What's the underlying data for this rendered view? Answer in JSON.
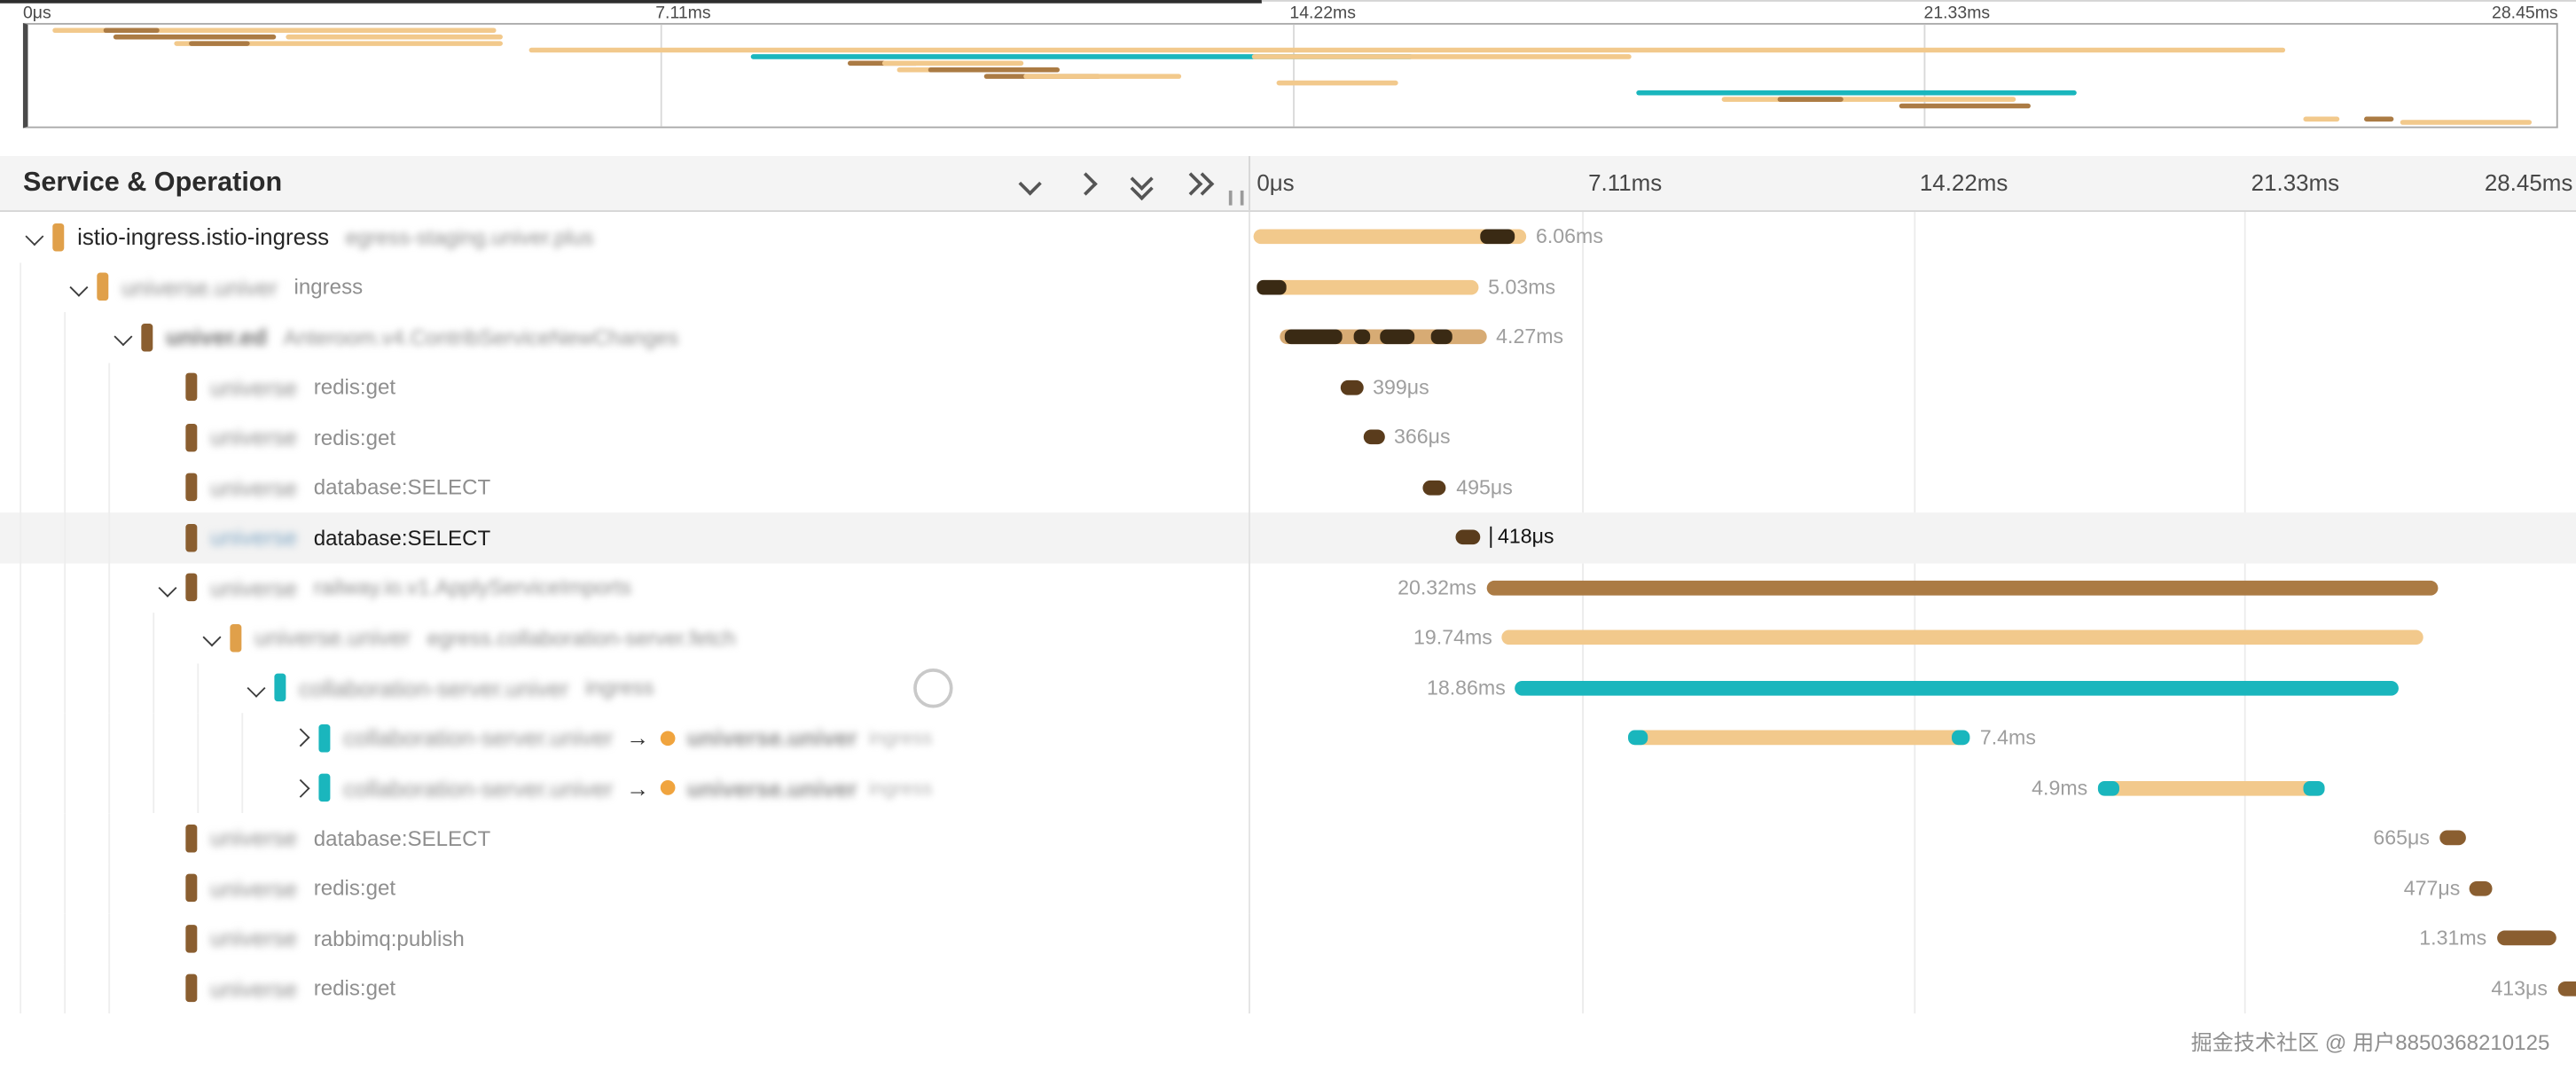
{
  "colors": {
    "tan": "#f2c98c",
    "tan2": "#e0a04a",
    "tan3": "#d7ab74",
    "brown": "#ab7b44",
    "brown2": "#8a5e30",
    "darkbar": "#5a3c1c",
    "dark": "#3a2a14",
    "teal": "#1ab6bd",
    "orange": "#f0a43e"
  },
  "glyphs": {
    "arrow": "→"
  },
  "minimap": {
    "ticks": [
      "0μs",
      "7.11ms",
      "14.22ms",
      "21.33ms",
      "28.45ms"
    ],
    "bars": [
      {
        "t": 2,
        "l": 1.0,
        "w": 17.5,
        "c": "tan"
      },
      {
        "t": 2,
        "l": 3.0,
        "w": 2.2,
        "c": "brown"
      },
      {
        "t": 6,
        "l": 3.4,
        "w": 6.4,
        "c": "brown"
      },
      {
        "t": 6,
        "l": 10.2,
        "w": 8.6,
        "c": "tan"
      },
      {
        "t": 10,
        "l": 5.8,
        "w": 13.0,
        "c": "tan"
      },
      {
        "t": 10,
        "l": 6.4,
        "w": 2.4,
        "c": "brown"
      },
      {
        "t": 14,
        "l": 19.8,
        "w": 69.5,
        "c": "tan"
      },
      {
        "t": 18,
        "l": 28.6,
        "w": 26.2,
        "c": "teal"
      },
      {
        "t": 18,
        "l": 48.4,
        "w": 15.0,
        "c": "tan"
      },
      {
        "t": 22,
        "l": 32.4,
        "w": 2.8,
        "c": "brown"
      },
      {
        "t": 22,
        "l": 33.8,
        "w": 5.6,
        "c": "tan"
      },
      {
        "t": 26,
        "l": 34.4,
        "w": 3.0,
        "c": "tan"
      },
      {
        "t": 26,
        "l": 35.6,
        "w": 5.2,
        "c": "brown"
      },
      {
        "t": 30,
        "l": 37.8,
        "w": 4.6,
        "c": "brown"
      },
      {
        "t": 30,
        "l": 39.4,
        "w": 6.2,
        "c": "tan"
      },
      {
        "t": 34,
        "l": 49.4,
        "w": 4.8,
        "c": "tan"
      },
      {
        "t": 40,
        "l": 63.6,
        "w": 17.4,
        "c": "teal"
      },
      {
        "t": 44,
        "l": 67.0,
        "w": 11.6,
        "c": "tan"
      },
      {
        "t": 44,
        "l": 69.2,
        "w": 2.6,
        "c": "brown"
      },
      {
        "t": 48,
        "l": 74.0,
        "w": 5.2,
        "c": "brown"
      },
      {
        "t": 56,
        "l": 90.0,
        "w": 1.4,
        "c": "tan"
      },
      {
        "t": 56,
        "l": 92.4,
        "w": 1.2,
        "c": "brown"
      },
      {
        "t": 58,
        "l": 93.8,
        "w": 5.2,
        "c": "tan"
      }
    ]
  },
  "header": {
    "title": "Service & Operation",
    "ticks": [
      "0μs",
      "7.11ms",
      "14.22ms",
      "21.33ms",
      "28.45ms"
    ]
  },
  "rows": [
    {
      "depth": 0,
      "chevron": "down",
      "strip": "tan2",
      "service": "istio-ingress.istio-ingress",
      "service_blur": false,
      "op": "egress-staging.univer.plus",
      "op_blur": true,
      "label": "6.06ms",
      "label_side": "right",
      "bar": {
        "left": 0.2,
        "width": 20.6,
        "color": "tan",
        "parts": [
          {
            "left": 17.4,
            "width": 2.6,
            "color": "dark"
          }
        ]
      }
    },
    {
      "depth": 1,
      "chevron": "down",
      "strip": "tan2",
      "service": "universe.univer",
      "service_blur": true,
      "op": "ingress",
      "op_blur": false,
      "label": "5.03ms",
      "label_side": "right",
      "bar": {
        "left": 0.5,
        "width": 16.7,
        "color": "tan",
        "parts": [
          {
            "left": 0.5,
            "width": 2.2,
            "color": "dark"
          }
        ]
      }
    },
    {
      "depth": 2,
      "chevron": "down",
      "strip": "brown2",
      "service": "univer.ed",
      "service_blur": true,
      "service_bold": true,
      "op": "Anteroom.v4.ContribServiceNewChanges",
      "op_blur": true,
      "label": "4.27ms",
      "label_side": "right",
      "bar": {
        "left": 2.2,
        "width": 15.6,
        "color": "tan3",
        "parts": [
          {
            "left": 2.6,
            "width": 4.4,
            "color": "dark"
          },
          {
            "left": 7.8,
            "width": 1.2,
            "color": "dark"
          },
          {
            "left": 9.8,
            "width": 2.6,
            "color": "dark"
          },
          {
            "left": 13.6,
            "width": 1.6,
            "color": "dark"
          }
        ]
      }
    },
    {
      "depth": 3,
      "chevron": null,
      "strip": "brown2",
      "service": "universe",
      "service_blur": true,
      "op": "redis:get",
      "op_blur": false,
      "label": "399μs",
      "label_side": "right",
      "bar": {
        "left": 6.8,
        "width": 1.7,
        "color": "darkbar"
      }
    },
    {
      "depth": 3,
      "chevron": null,
      "strip": "brown2",
      "service": "universe",
      "service_blur": true,
      "op": "redis:get",
      "op_blur": false,
      "label": "366μs",
      "label_side": "right",
      "bar": {
        "left": 8.5,
        "width": 1.6,
        "color": "darkbar"
      }
    },
    {
      "depth": 3,
      "chevron": null,
      "strip": "brown2",
      "service": "universe",
      "service_blur": true,
      "op": "database:SELECT",
      "op_blur": false,
      "label": "495μs",
      "label_side": "right",
      "bar": {
        "left": 13.0,
        "width": 1.8,
        "color": "darkbar"
      }
    },
    {
      "depth": 3,
      "chevron": null,
      "strip": "brown2",
      "service": "universe",
      "service_blur": true,
      "service_bluish": true,
      "op": "database:SELECT",
      "op_blur": false,
      "op_dark": true,
      "label": "418μs",
      "label_side": "right",
      "label_dark": true,
      "highlight": true,
      "bar": {
        "left": 15.5,
        "width": 1.8,
        "color": "darkbar"
      }
    },
    {
      "depth": 3,
      "chevron": "down",
      "strip": "brown2",
      "service": "universe",
      "service_blur": true,
      "op": "railway.io.v1.ApplyServiceImports",
      "op_blur": true,
      "label": "20.32ms",
      "label_side": "left",
      "bar": {
        "left": 17.8,
        "width": 71.8,
        "color": "brown"
      }
    },
    {
      "depth": 4,
      "chevron": "down",
      "strip": "tan2",
      "service": "universe.univer",
      "service_blur": true,
      "op": "egress.collaboration-server.fetch",
      "op_blur": true,
      "label": "19.74ms",
      "label_side": "left",
      "bar": {
        "left": 19.0,
        "width": 69.5,
        "color": "tan"
      }
    },
    {
      "depth": 5,
      "chevron": "down",
      "strip": "teal",
      "service": "collaboration-server.univer",
      "service_blur": true,
      "op": "ingress",
      "op_blur": true,
      "label": "18.86ms",
      "label_side": "left",
      "spinner": true,
      "bar": {
        "left": 20.0,
        "width": 66.6,
        "color": "teal"
      }
    },
    {
      "depth": 6,
      "chevron": "right",
      "strip": "teal",
      "service": "collaboration-server.univer",
      "service_blur": true,
      "link": {
        "service": "universe.univer",
        "tail": "ingress"
      },
      "label": "7.4ms",
      "label_side": "right",
      "bar": {
        "left": 28.5,
        "width": 25.8,
        "color": "tan",
        "parts": [
          {
            "left": 28.5,
            "width": 1.5,
            "color": "teal"
          },
          {
            "left": 52.9,
            "width": 1.4,
            "color": "teal"
          }
        ]
      }
    },
    {
      "depth": 6,
      "chevron": "right",
      "strip": "teal",
      "service": "collaboration-server.univer",
      "service_blur": true,
      "link": {
        "service": "universe.univer",
        "tail": "ingress"
      },
      "label": "4.9ms",
      "label_side": "left",
      "bar": {
        "left": 63.9,
        "width": 17.2,
        "color": "tan",
        "parts": [
          {
            "left": 63.9,
            "width": 1.7,
            "color": "teal"
          },
          {
            "left": 79.4,
            "width": 1.7,
            "color": "teal"
          }
        ]
      }
    },
    {
      "depth": 3,
      "chevron": null,
      "strip": "brown2",
      "service": "universe",
      "service_blur": true,
      "op": "database:SELECT",
      "op_blur": false,
      "label": "665μs",
      "label_side": "left",
      "bar": {
        "left": 89.7,
        "width": 2.0,
        "color": "brown2"
      }
    },
    {
      "depth": 3,
      "chevron": null,
      "strip": "brown2",
      "service": "universe",
      "service_blur": true,
      "op": "redis:get",
      "op_blur": false,
      "label": "477μs",
      "label_side": "left",
      "bar": {
        "left": 92.0,
        "width": 1.7,
        "color": "brown2"
      }
    },
    {
      "depth": 3,
      "chevron": null,
      "strip": "brown2",
      "service": "universe",
      "service_blur": true,
      "op": "rabbimq:publish",
      "op_blur": false,
      "label": "1.31ms",
      "label_side": "left",
      "bar": {
        "left": 94.0,
        "width": 4.5,
        "color": "brown2"
      }
    },
    {
      "depth": 3,
      "chevron": null,
      "strip": "brown2",
      "service": "universe",
      "service_blur": true,
      "op": "redis:get",
      "op_blur": false,
      "label": "413μs",
      "label_side": "left",
      "bar": {
        "left": 98.6,
        "width": 2.4,
        "color": "brown2"
      }
    }
  ],
  "watermark": "掘金技术社区 @ 用户8850368210125"
}
